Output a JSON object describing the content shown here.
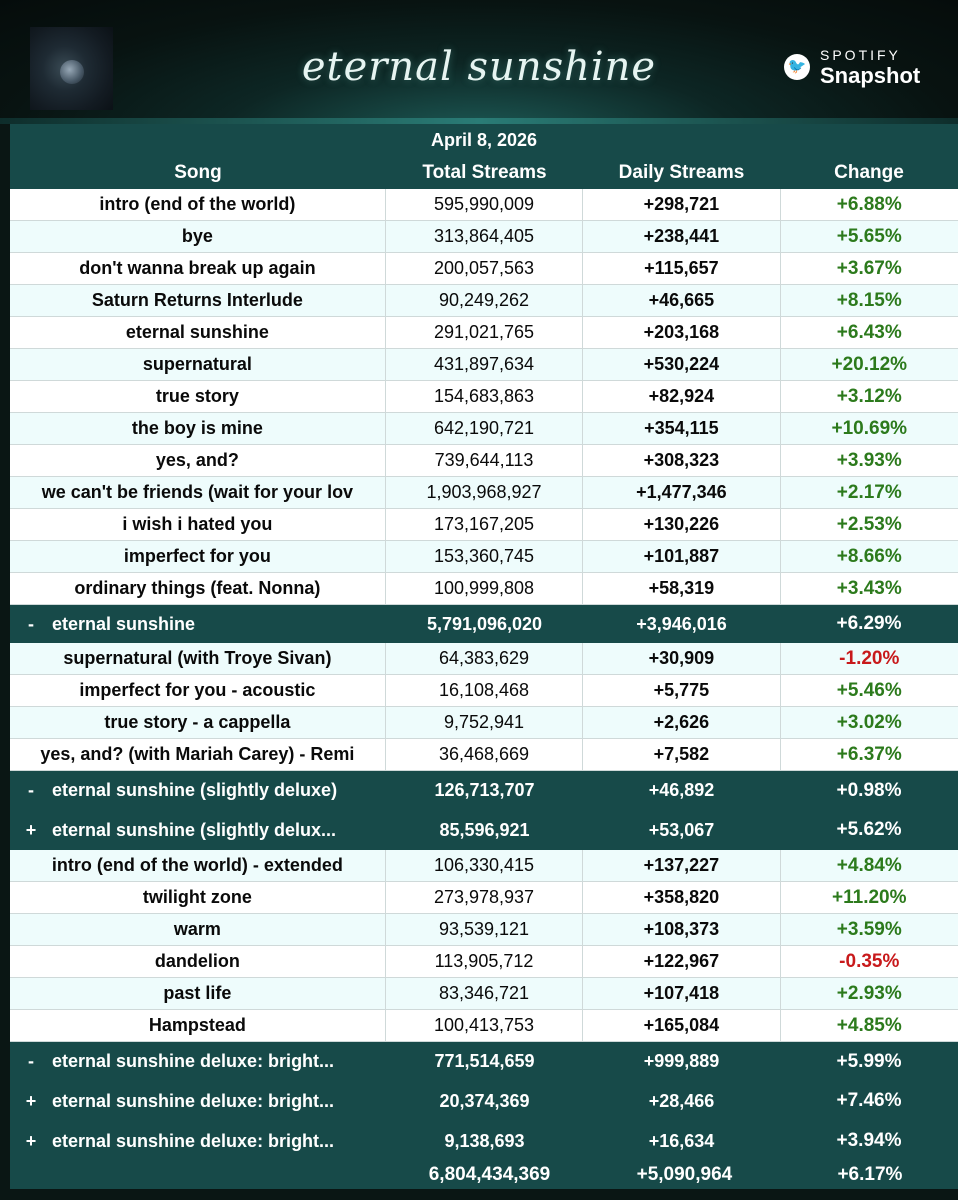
{
  "header": {
    "title": "eternal sunshine",
    "brand_top": "SPOTIFY",
    "brand_bottom": "Snapshot",
    "bird_glyph": "🐦"
  },
  "date": "April 8, 2026",
  "columns": [
    "Song",
    "Total Streams",
    "Daily Streams",
    "Change"
  ],
  "sections": [
    {
      "rows": [
        {
          "song": "intro (end of the world)",
          "total": "595,990,009",
          "daily": "+298,721",
          "change": "+6.88%",
          "neg": false
        },
        {
          "song": "bye",
          "total": "313,864,405",
          "daily": "+238,441",
          "change": "+5.65%",
          "neg": false
        },
        {
          "song": "don't wanna break up again",
          "total": "200,057,563",
          "daily": "+115,657",
          "change": "+3.67%",
          "neg": false
        },
        {
          "song": "Saturn Returns Interlude",
          "total": "90,249,262",
          "daily": "+46,665",
          "change": "+8.15%",
          "neg": false
        },
        {
          "song": "eternal sunshine",
          "total": "291,021,765",
          "daily": "+203,168",
          "change": "+6.43%",
          "neg": false
        },
        {
          "song": "supernatural",
          "total": "431,897,634",
          "daily": "+530,224",
          "change": "+20.12%",
          "neg": false
        },
        {
          "song": "true story",
          "total": "154,683,863",
          "daily": "+82,924",
          "change": "+3.12%",
          "neg": false
        },
        {
          "song": "the boy is mine",
          "total": "642,190,721",
          "daily": "+354,115",
          "change": "+10.69%",
          "neg": false
        },
        {
          "song": "yes, and?",
          "total": "739,644,113",
          "daily": "+308,323",
          "change": "+3.93%",
          "neg": false
        },
        {
          "song": "we can't be friends (wait for your lov",
          "total": "1,903,968,927",
          "daily": "+1,477,346",
          "change": "+2.17%",
          "neg": false
        },
        {
          "song": "i wish i hated you",
          "total": "173,167,205",
          "daily": "+130,226",
          "change": "+2.53%",
          "neg": false
        },
        {
          "song": "imperfect for you",
          "total": "153,360,745",
          "daily": "+101,887",
          "change": "+8.66%",
          "neg": false
        },
        {
          "song": "ordinary things (feat. Nonna)",
          "total": "100,999,808",
          "daily": "+58,319",
          "change": "+3.43%",
          "neg": false
        }
      ],
      "summaries": [
        {
          "sign": "-",
          "album": "eternal sunshine",
          "total": "5,791,096,020",
          "daily": "+3,946,016",
          "change": "+6.29%"
        }
      ]
    },
    {
      "rows": [
        {
          "song": "supernatural (with Troye Sivan)",
          "total": "64,383,629",
          "daily": "+30,909",
          "change": "-1.20%",
          "neg": true
        },
        {
          "song": "imperfect for you - acoustic",
          "total": "16,108,468",
          "daily": "+5,775",
          "change": "+5.46%",
          "neg": false
        },
        {
          "song": "true story - a cappella",
          "total": "9,752,941",
          "daily": "+2,626",
          "change": "+3.02%",
          "neg": false
        },
        {
          "song": "yes, and? (with Mariah Carey) - Remi",
          "total": "36,468,669",
          "daily": "+7,582",
          "change": "+6.37%",
          "neg": false
        }
      ],
      "summaries": [
        {
          "sign": "-",
          "album": "eternal sunshine (slightly deluxe)",
          "total": "126,713,707",
          "daily": "+46,892",
          "change": "+0.98%"
        },
        {
          "sign": "+",
          "album": "eternal sunshine (slightly delux...",
          "total": "85,596,921",
          "daily": "+53,067",
          "change": "+5.62%"
        }
      ]
    },
    {
      "rows": [
        {
          "song": "intro (end of the world) - extended",
          "total": "106,330,415",
          "daily": "+137,227",
          "change": "+4.84%",
          "neg": false
        },
        {
          "song": "twilight zone",
          "total": "273,978,937",
          "daily": "+358,820",
          "change": "+11.20%",
          "neg": false
        },
        {
          "song": "warm",
          "total": "93,539,121",
          "daily": "+108,373",
          "change": "+3.59%",
          "neg": false
        },
        {
          "song": "dandelion",
          "total": "113,905,712",
          "daily": "+122,967",
          "change": "-0.35%",
          "neg": true
        },
        {
          "song": "past life",
          "total": "83,346,721",
          "daily": "+107,418",
          "change": "+2.93%",
          "neg": false
        },
        {
          "song": "Hampstead",
          "total": "100,413,753",
          "daily": "+165,084",
          "change": "+4.85%",
          "neg": false
        }
      ],
      "summaries": [
        {
          "sign": "-",
          "album": "eternal sunshine deluxe: bright...",
          "total": "771,514,659",
          "daily": "+999,889",
          "change": "+5.99%"
        },
        {
          "sign": "+",
          "album": "eternal sunshine deluxe: bright...",
          "total": "20,374,369",
          "daily": "+28,466",
          "change": "+7.46%"
        },
        {
          "sign": "+",
          "album": "eternal sunshine deluxe: bright...",
          "total": "9,138,693",
          "daily": "+16,634",
          "change": "+3.94%"
        }
      ]
    }
  ],
  "grand_total": {
    "label": "",
    "total": "6,804,434,369",
    "daily": "+5,090,964",
    "change": "+6.17%"
  }
}
